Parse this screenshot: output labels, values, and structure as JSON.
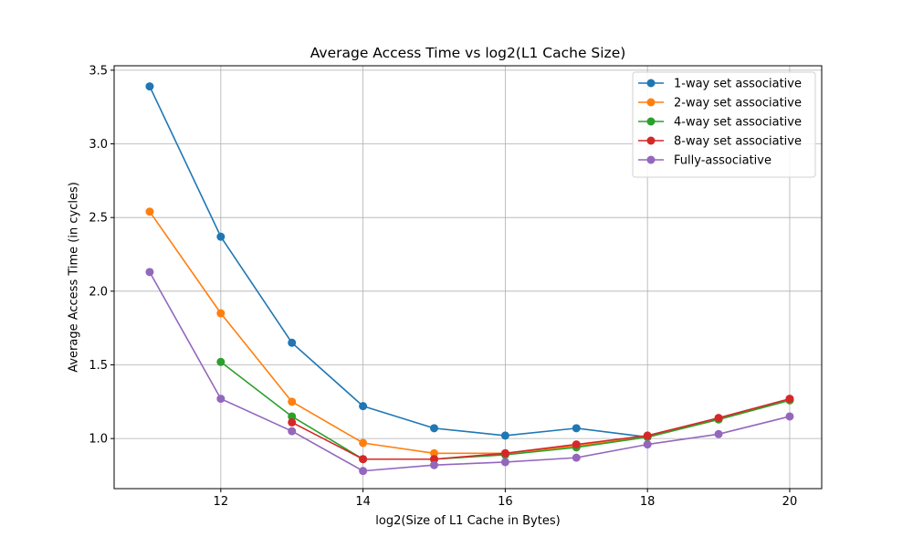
{
  "chart_data": {
    "type": "line",
    "title": "Average Access Time vs log2(L1 Cache Size)",
    "xlabel": "log2(Size of L1 Cache in Bytes)",
    "ylabel": "Average Access Time (in cycles)",
    "xlim": [
      10.5,
      20.45
    ],
    "ylim": [
      0.66,
      3.53
    ],
    "xticks": [
      12,
      14,
      16,
      18,
      20
    ],
    "xtick_labels": [
      "12",
      "14",
      "16",
      "18",
      "20"
    ],
    "yticks": [
      1.0,
      1.5,
      2.0,
      2.5,
      3.0,
      3.5
    ],
    "ytick_labels": [
      "1.0",
      "1.5",
      "2.0",
      "2.5",
      "3.0",
      "3.5"
    ],
    "grid": true,
    "legend_position": "top-right",
    "series": [
      {
        "name": "1-way set associative",
        "color": "#1f77b4",
        "x": [
          11,
          12,
          13,
          14,
          15,
          16,
          17,
          18,
          19,
          20
        ],
        "values": [
          3.39,
          2.37,
          1.65,
          1.22,
          1.07,
          1.02,
          1.07,
          1.01,
          1.13,
          1.26
        ]
      },
      {
        "name": "2-way set associative",
        "color": "#ff7f0e",
        "x": [
          11,
          12,
          13,
          14,
          15,
          16,
          17,
          18,
          19,
          20
        ],
        "values": [
          2.54,
          1.85,
          1.25,
          0.97,
          0.9,
          0.9,
          0.95,
          1.01,
          1.13,
          1.26
        ]
      },
      {
        "name": "4-way set associative",
        "color": "#2ca02c",
        "x": [
          12,
          13,
          14,
          15,
          16,
          17,
          18,
          19,
          20
        ],
        "values": [
          1.52,
          1.15,
          0.86,
          0.86,
          0.89,
          0.94,
          1.01,
          1.13,
          1.26
        ]
      },
      {
        "name": "8-way set associative",
        "color": "#d62728",
        "x": [
          13,
          14,
          15,
          16,
          17,
          18,
          19,
          20
        ],
        "values": [
          1.11,
          0.86,
          0.86,
          0.9,
          0.96,
          1.02,
          1.14,
          1.27
        ]
      },
      {
        "name": "Fully-associative",
        "color": "#9467bd",
        "x": [
          11,
          12,
          13,
          14,
          15,
          16,
          17,
          18,
          19,
          20
        ],
        "values": [
          2.13,
          1.27,
          1.05,
          0.78,
          0.82,
          0.84,
          0.87,
          0.96,
          1.03,
          1.15
        ]
      }
    ]
  }
}
